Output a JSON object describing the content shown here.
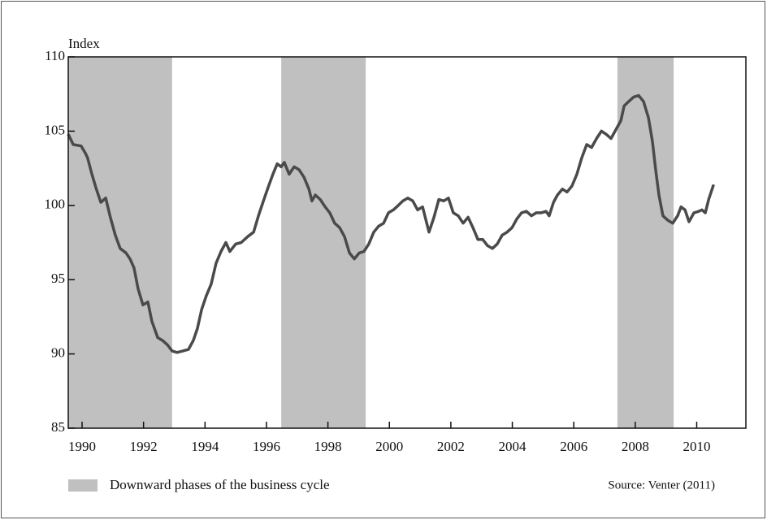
{
  "chart_data": {
    "type": "line",
    "y_label": "Index",
    "source": "Source: Venter (2011)",
    "xlim": [
      1989.55,
      2011.6
    ],
    "xticks": [
      1990,
      1992,
      1994,
      1996,
      1998,
      2000,
      2002,
      2004,
      2006,
      2008,
      2010
    ],
    "ylim": [
      85,
      110
    ],
    "yticks": [
      85,
      90,
      95,
      100,
      105,
      110
    ],
    "shaded_label": "Downward phases of the business cycle",
    "shaded_color": "#c0c0c0",
    "shaded_regions": [
      {
        "start": 1989.55,
        "end": 1992.93
      },
      {
        "start": 1996.48,
        "end": 1999.23
      },
      {
        "start": 2007.42,
        "end": 2009.25
      }
    ],
    "x": [
      1989.55,
      1989.71,
      1989.97,
      1990.11,
      1990.18,
      1990.32,
      1990.45,
      1990.61,
      1990.77,
      1990.92,
      1991.08,
      1991.24,
      1991.43,
      1991.56,
      1991.69,
      1991.82,
      1991.98,
      1992.14,
      1992.27,
      1992.46,
      1992.62,
      1992.78,
      1992.93,
      1993.09,
      1993.28,
      1993.46,
      1993.62,
      1993.75,
      1993.89,
      1994.04,
      1994.2,
      1994.36,
      1994.52,
      1994.68,
      1994.81,
      1995.0,
      1995.18,
      1995.39,
      1995.58,
      1995.74,
      1995.9,
      1996.05,
      1996.21,
      1996.35,
      1996.48,
      1996.58,
      1996.74,
      1996.9,
      1997.06,
      1997.22,
      1997.38,
      1997.48,
      1997.59,
      1997.75,
      1997.91,
      1998.06,
      1998.22,
      1998.38,
      1998.54,
      1998.7,
      1998.86,
      1999.02,
      1999.17,
      1999.33,
      1999.49,
      1999.65,
      1999.81,
      1999.97,
      2000.13,
      2000.29,
      2000.44,
      2000.6,
      2000.76,
      2000.92,
      2001.08,
      2001.29,
      2001.45,
      2001.61,
      2001.77,
      2001.92,
      2002.08,
      2002.24,
      2002.4,
      2002.56,
      2002.72,
      2002.88,
      2003.04,
      2003.19,
      2003.35,
      2003.51,
      2003.67,
      2003.83,
      2003.99,
      2004.15,
      2004.3,
      2004.46,
      2004.62,
      2004.78,
      2004.94,
      2005.1,
      2005.2,
      2005.34,
      2005.47,
      2005.63,
      2005.78,
      2005.94,
      2006.1,
      2006.26,
      2006.42,
      2006.58,
      2006.74,
      2006.9,
      2007.05,
      2007.21,
      2007.37,
      2007.53,
      2007.64,
      2007.79,
      2007.95,
      2008.11,
      2008.27,
      2008.43,
      2008.56,
      2008.67,
      2008.77,
      2008.9,
      2009.06,
      2009.22,
      2009.38,
      2009.49,
      2009.62,
      2009.75,
      2009.91,
      2010.07,
      2010.17,
      2010.28,
      2010.39,
      2010.55
    ],
    "series": [
      {
        "color": "#4a4a4a",
        "values": [
          104.8,
          104.1,
          104.0,
          103.5,
          103.2,
          102.1,
          101.2,
          100.2,
          100.5,
          99.2,
          98.0,
          97.1,
          96.8,
          96.4,
          95.8,
          94.4,
          93.3,
          93.5,
          92.2,
          91.1,
          90.9,
          90.6,
          90.2,
          90.1,
          90.2,
          90.3,
          90.9,
          91.7,
          93.0,
          93.9,
          94.7,
          96.1,
          96.9,
          97.5,
          96.9,
          97.4,
          97.5,
          97.9,
          98.2,
          99.3,
          100.3,
          101.2,
          102.1,
          102.8,
          102.6,
          102.9,
          102.1,
          102.6,
          102.4,
          101.9,
          101.1,
          100.3,
          100.7,
          100.4,
          99.9,
          99.5,
          98.8,
          98.5,
          97.9,
          96.8,
          96.4,
          96.8,
          96.9,
          97.4,
          98.2,
          98.6,
          98.8,
          99.5,
          99.7,
          100.0,
          100.3,
          100.5,
          100.3,
          99.7,
          99.9,
          98.2,
          99.2,
          100.4,
          100.3,
          100.5,
          99.5,
          99.3,
          98.8,
          99.2,
          98.5,
          97.7,
          97.7,
          97.3,
          97.1,
          97.4,
          98.0,
          98.2,
          98.5,
          99.1,
          99.5,
          99.6,
          99.3,
          99.5,
          99.5,
          99.6,
          99.3,
          100.2,
          100.7,
          101.1,
          100.9,
          101.3,
          102.1,
          103.2,
          104.1,
          103.9,
          104.5,
          105.0,
          104.8,
          104.5,
          105.1,
          105.7,
          106.7,
          107.0,
          107.3,
          107.4,
          107.0,
          105.9,
          104.3,
          102.3,
          100.7,
          99.3,
          99.0,
          98.8,
          99.3,
          99.9,
          99.7,
          98.9,
          99.5,
          99.6,
          99.7,
          99.5,
          100.4,
          101.4
        ]
      }
    ]
  }
}
